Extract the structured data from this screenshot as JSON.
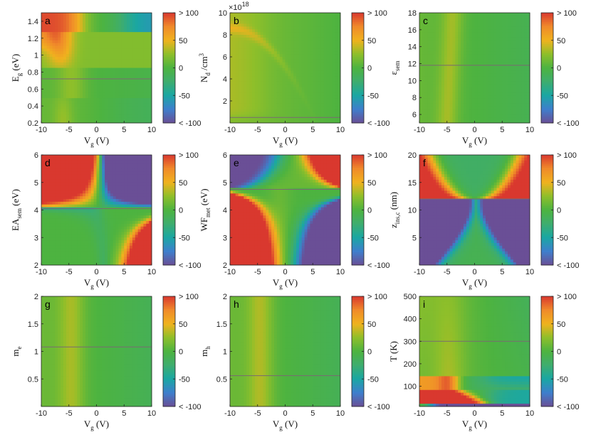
{
  "colorbar": {
    "labels": [
      "> 100",
      "50",
      "0",
      "-50",
      "< -100"
    ],
    "levels": [
      100,
      50,
      0,
      -50,
      -100
    ],
    "colors": [
      "#6a4f96",
      "#3e7fcc",
      "#1aa7a3",
      "#3ead6e",
      "#4db340",
      "#8fbf2a",
      "#f0b21e",
      "#f08a2a",
      "#d9382f"
    ]
  },
  "chart_data": [
    {
      "panel": "a",
      "type": "heatmap",
      "xlabel": "V_g (V)",
      "ylabel": "E_g (eV)",
      "xlim": [
        -10,
        10
      ],
      "ylim": [
        0.2,
        1.5
      ],
      "xticks": [
        "-10",
        "-5",
        "0",
        "5",
        "10"
      ],
      "yticks": [
        "0.2",
        "0.4",
        "0.6",
        "0.8",
        "1",
        "1.2",
        "1.4"
      ],
      "reference_line_y": 0.72,
      "clim": [
        -100,
        100
      ]
    },
    {
      "panel": "b",
      "type": "heatmap",
      "xlabel": "V_g (V)",
      "ylabel": "N_d /cm^3",
      "xlim": [
        -10,
        10
      ],
      "ylim": [
        0,
        10
      ],
      "xticks": [
        "-10",
        "-5",
        "0",
        "5",
        "10"
      ],
      "yticks": [
        "2",
        "4",
        "6",
        "8",
        "10"
      ],
      "y_multiplier": "×10^18",
      "reference_line_y": 0.5,
      "clim": [
        -100,
        100
      ]
    },
    {
      "panel": "c",
      "type": "heatmap",
      "xlabel": "V_g (V)",
      "ylabel": "ε_sem",
      "xlim": [
        -10,
        10
      ],
      "ylim": [
        5,
        18
      ],
      "xticks": [
        "-10",
        "-5",
        "0",
        "5",
        "10"
      ],
      "yticks": [
        "6",
        "8",
        "10",
        "12",
        "14",
        "16",
        "18"
      ],
      "reference_line_y": 11.8,
      "clim": [
        -100,
        100
      ]
    },
    {
      "panel": "d",
      "type": "heatmap",
      "xlabel": "V_g (V)",
      "ylabel": "EA_sem (eV)",
      "xlim": [
        -10,
        10
      ],
      "ylim": [
        2,
        6
      ],
      "xticks": [
        "-10",
        "-5",
        "0",
        "5",
        "10"
      ],
      "yticks": [
        "2",
        "3",
        "4",
        "5",
        "6"
      ],
      "reference_line_y": 4.05,
      "clim": [
        -100,
        100
      ]
    },
    {
      "panel": "e",
      "type": "heatmap",
      "xlabel": "V_g (V)",
      "ylabel": "WF_met (eV)",
      "xlim": [
        -10,
        10
      ],
      "ylim": [
        2,
        6
      ],
      "xticks": [
        "-10",
        "-5",
        "0",
        "5",
        "10"
      ],
      "yticks": [
        "2",
        "3",
        "4",
        "5",
        "6"
      ],
      "reference_line_y": 4.75,
      "clim": [
        -100,
        100
      ]
    },
    {
      "panel": "f",
      "type": "heatmap",
      "xlabel": "V_g (V)",
      "ylabel": "z_ins,c (nm)",
      "xlim": [
        -10,
        10
      ],
      "ylim": [
        0,
        20
      ],
      "xticks": [
        "-10",
        "-5",
        "0",
        "5",
        "10"
      ],
      "yticks": [
        "5",
        "10",
        "15",
        "20"
      ],
      "reference_line_y": 12,
      "clim": [
        -100,
        100
      ]
    },
    {
      "panel": "g",
      "type": "heatmap",
      "xlabel": "V_g (V)",
      "ylabel": "m_e",
      "xlim": [
        -10,
        10
      ],
      "ylim": [
        0,
        2
      ],
      "xticks": [
        "-10",
        "-5",
        "0",
        "5",
        "10"
      ],
      "yticks": [
        "0.5",
        "1",
        "1.5",
        "2"
      ],
      "reference_line_y": 1.08,
      "clim": [
        -100,
        100
      ]
    },
    {
      "panel": "h",
      "type": "heatmap",
      "xlabel": "V_g (V)",
      "ylabel": "m_h",
      "xlim": [
        -10,
        10
      ],
      "ylim": [
        0,
        2
      ],
      "xticks": [
        "-10",
        "-5",
        "0",
        "5",
        "10"
      ],
      "yticks": [
        "0.5",
        "1",
        "1.5",
        "2"
      ],
      "reference_line_y": 0.56,
      "clim": [
        -100,
        100
      ]
    },
    {
      "panel": "i",
      "type": "heatmap",
      "xlabel": "V_g (V)",
      "ylabel": "T (K)",
      "xlim": [
        -10,
        10
      ],
      "ylim": [
        10,
        500
      ],
      "xticks": [
        "-10",
        "-5",
        "0",
        "5",
        "10"
      ],
      "yticks": [
        "100",
        "200",
        "300",
        "400",
        "500"
      ],
      "reference_line_y": 300,
      "clim": [
        -100,
        100
      ]
    }
  ]
}
